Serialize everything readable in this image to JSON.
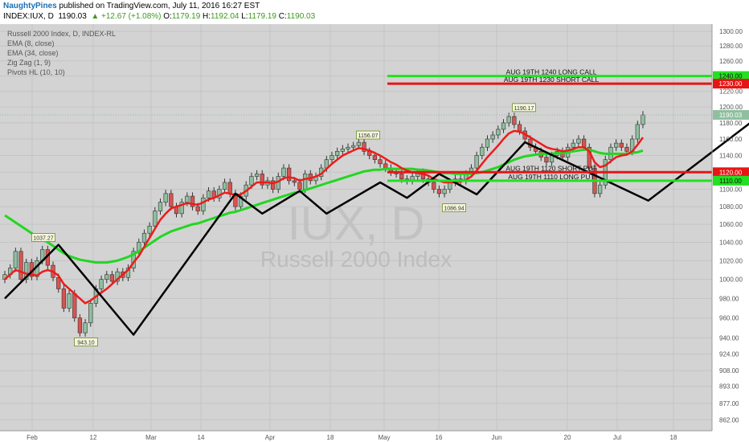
{
  "header": {
    "author": "NaughtyPines",
    "published_text": "published on TradingView.com, July 11, 2016 16:27 EST",
    "symbol": "INDEX:IUX, D",
    "last": "1190.03",
    "change_arrow": "▲",
    "change": "+12.67 (+1.08%)",
    "open_label": "O:",
    "open": "1179.19",
    "high_label": "H:",
    "high": "1192.04",
    "low_label": "L:",
    "low": "1179.19",
    "close_label": "C:",
    "close": "1190.03"
  },
  "legend": [
    "Russell 2000 Index, D, INDEX-RL",
    "EMA (8, close)",
    "EMA (34, close)",
    "Zig Zag (1, 9)",
    "Pivots HL (10, 10)"
  ],
  "watermark": {
    "symbol": "IUX, D",
    "name": "Russell 2000 Index"
  },
  "colors": {
    "plot_bg": "#d3d3d3",
    "up": "#8fbf9f",
    "down": "#d9534f",
    "ema8": "#ee1b1b",
    "ema34": "#22d622",
    "zigzag": "#000000",
    "level_green": "#22e022",
    "level_red": "#e81515"
  },
  "chart_data": {
    "type": "candlestick",
    "title": "Russell 2000 Index, D, INDEX-RL",
    "x_tick_labels": [
      "Feb",
      "12",
      "Mar",
      "14",
      "Apr",
      "18",
      "May",
      "16",
      "Jun",
      "20",
      "Jul",
      "18"
    ],
    "y_tick_labels": [
      "1300.00",
      "1280.00",
      "1260.00",
      "1240.00",
      "1220.00",
      "1200.00",
      "1180.00",
      "1160.00",
      "1140.00",
      "1120.00",
      "1100.00",
      "1080.00",
      "1060.00",
      "1040.00",
      "1020.00",
      "1000.00",
      "980.00",
      "960.00",
      "940.00",
      "924.00",
      "908.00",
      "893.00",
      "877.00",
      "862.00"
    ],
    "y_scale": "log",
    "ylim": [
      852,
      1310
    ],
    "last_price": 1190.03,
    "levels": [
      {
        "value": 1240.0,
        "label": "AUG 19TH 1240 LONG CALL",
        "tag": "1240.00",
        "color": "#22e022"
      },
      {
        "value": 1230.0,
        "label": "AUG 19TH 1230 SHORT CALL",
        "tag": "1230.00",
        "color": "#e81515"
      },
      {
        "value": 1120.0,
        "label": "AUG 19TH 1120 SHORT PUT",
        "tag": "1120.00",
        "color": "#e81515"
      },
      {
        "value": 1110.0,
        "label": "AUG 19TH 1110 LONG PUT",
        "tag": "1110.00",
        "color": "#22e022"
      }
    ],
    "pivots": [
      {
        "value": 1037.27,
        "label": "1037.27",
        "type": "high"
      },
      {
        "value": 943.1,
        "label": "943.10",
        "type": "low"
      },
      {
        "value": 1156.07,
        "label": "1156.07",
        "type": "high"
      },
      {
        "value": 1086.94,
        "label": "1086.94",
        "type": "low"
      },
      {
        "value": 1190.17,
        "label": "1190.17",
        "type": "high"
      }
    ],
    "closes": [
      1005,
      1012,
      1030,
      1000,
      1018,
      1003,
      1020,
      1032,
      1015,
      1002,
      990,
      970,
      985,
      960,
      945,
      955,
      975,
      990,
      1000,
      1005,
      998,
      1008,
      1002,
      1012,
      1030,
      1040,
      1050,
      1058,
      1075,
      1085,
      1095,
      1080,
      1072,
      1085,
      1092,
      1080,
      1075,
      1090,
      1098,
      1090,
      1100,
      1108,
      1095,
      1080,
      1092,
      1105,
      1115,
      1118,
      1105,
      1110,
      1100,
      1115,
      1125,
      1110,
      1108,
      1100,
      1118,
      1110,
      1115,
      1125,
      1135,
      1140,
      1145,
      1148,
      1150,
      1152,
      1156,
      1145,
      1140,
      1135,
      1130,
      1125,
      1120,
      1118,
      1112,
      1110,
      1115,
      1120,
      1112,
      1108,
      1100,
      1095,
      1100,
      1108,
      1112,
      1110,
      1118,
      1125,
      1140,
      1150,
      1160,
      1165,
      1172,
      1180,
      1188,
      1178,
      1170,
      1160,
      1150,
      1145,
      1138,
      1132,
      1140,
      1145,
      1138,
      1150,
      1155,
      1160,
      1150,
      1125,
      1095,
      1105,
      1135,
      1150,
      1155,
      1150,
      1145,
      1160,
      1178,
      1190.03
    ],
    "ema8": [
      1000,
      1005,
      1010,
      1008,
      1006,
      1005,
      1004,
      1008,
      1010,
      1008,
      1004,
      995,
      990,
      985,
      980,
      975,
      978,
      982,
      986,
      990,
      995,
      1000,
      1005,
      1010,
      1018,
      1025,
      1035,
      1045,
      1055,
      1065,
      1072,
      1078,
      1080,
      1082,
      1084,
      1083,
      1082,
      1085,
      1088,
      1090,
      1093,
      1096,
      1095,
      1093,
      1094,
      1098,
      1103,
      1108,
      1108,
      1108,
      1107,
      1109,
      1113,
      1114,
      1113,
      1110,
      1112,
      1113,
      1115,
      1118,
      1124,
      1130,
      1135,
      1140,
      1143,
      1146,
      1149,
      1148,
      1146,
      1143,
      1140,
      1136,
      1132,
      1129,
      1125,
      1122,
      1120,
      1119,
      1118,
      1116,
      1112,
      1110,
      1108,
      1108,
      1108,
      1109,
      1111,
      1115,
      1122,
      1130,
      1138,
      1145,
      1152,
      1160,
      1167,
      1170,
      1169,
      1166,
      1162,
      1158,
      1154,
      1150,
      1148,
      1147,
      1145,
      1146,
      1148,
      1150,
      1150,
      1145,
      1132,
      1126,
      1128,
      1133,
      1138,
      1140,
      1141,
      1145,
      1153,
      1162
    ],
    "ema34": [
      1070,
      1066,
      1062,
      1058,
      1054,
      1050,
      1046,
      1043,
      1040,
      1036,
      1032,
      1028,
      1025,
      1023,
      1021,
      1020,
      1019,
      1018,
      1018,
      1018,
      1019,
      1020,
      1022,
      1024,
      1027,
      1030,
      1034,
      1038,
      1042,
      1046,
      1049,
      1052,
      1054,
      1056,
      1058,
      1060,
      1061,
      1063,
      1065,
      1067,
      1069,
      1071,
      1073,
      1074,
      1076,
      1078,
      1080,
      1082,
      1084,
      1086,
      1088,
      1090,
      1092,
      1094,
      1096,
      1097,
      1099,
      1101,
      1103,
      1105,
      1107,
      1109,
      1111,
      1113,
      1115,
      1117,
      1119,
      1121,
      1122,
      1123,
      1123,
      1124,
      1124,
      1124,
      1124,
      1124,
      1124,
      1123,
      1123,
      1122,
      1121,
      1120,
      1119,
      1119,
      1118,
      1118,
      1118,
      1118,
      1119,
      1120,
      1122,
      1124,
      1126,
      1129,
      1132,
      1135,
      1137,
      1139,
      1140,
      1141,
      1142,
      1142,
      1142,
      1143,
      1143,
      1144,
      1145,
      1146,
      1147,
      1147,
      1145,
      1143,
      1142,
      1142,
      1142,
      1142,
      1142,
      1143,
      1144,
      1146
    ],
    "zigzag": [
      [
        0,
        980
      ],
      [
        10,
        1037.27
      ],
      [
        24,
        943.1
      ],
      [
        43,
        1095
      ],
      [
        48,
        1072
      ],
      [
        55,
        1098
      ],
      [
        60,
        1072
      ],
      [
        70,
        1108
      ],
      [
        75,
        1090
      ],
      [
        81,
        1118
      ],
      [
        88,
        1094
      ],
      [
        97,
        1156.07
      ],
      [
        120,
        1086.94
      ],
      [
        141,
        1190.17
      ],
      [
        150,
        1135
      ],
      [
        157,
        1170
      ],
      [
        161,
        1086.94
      ],
      [
        162,
        1140
      ],
      [
        168,
        1148
      ]
    ]
  }
}
